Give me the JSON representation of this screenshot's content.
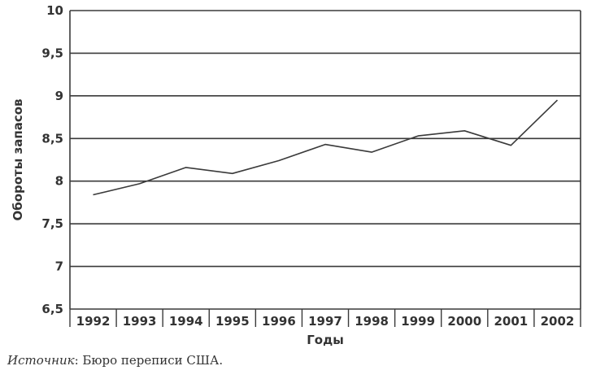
{
  "chart_data": {
    "type": "line",
    "xlabel": "Годы",
    "ylabel": "Обороты запасов",
    "ylim": [
      6.5,
      10
    ],
    "y_ticks": [
      "6,5",
      "7",
      "7,5",
      "8",
      "8,5",
      "9",
      "9,5",
      "10"
    ],
    "y_tick_values": [
      6.5,
      7,
      7.5,
      8,
      8.5,
      9,
      9.5,
      10
    ],
    "categories": [
      "1992",
      "1993",
      "1994",
      "1995",
      "1996",
      "1997",
      "1998",
      "1999",
      "2000",
      "2001",
      "2002"
    ],
    "series": [
      {
        "values": [
          7.84,
          7.97,
          8.16,
          8.09,
          8.24,
          8.43,
          8.34,
          8.53,
          8.59,
          8.42,
          8.95
        ]
      }
    ],
    "grid": true,
    "colors": {
      "line": "#3a3a3a",
      "grid": "#3a3a3a",
      "text": "#333333"
    }
  },
  "source": {
    "label": "Источник",
    "text": ": Бюро переписи США."
  }
}
